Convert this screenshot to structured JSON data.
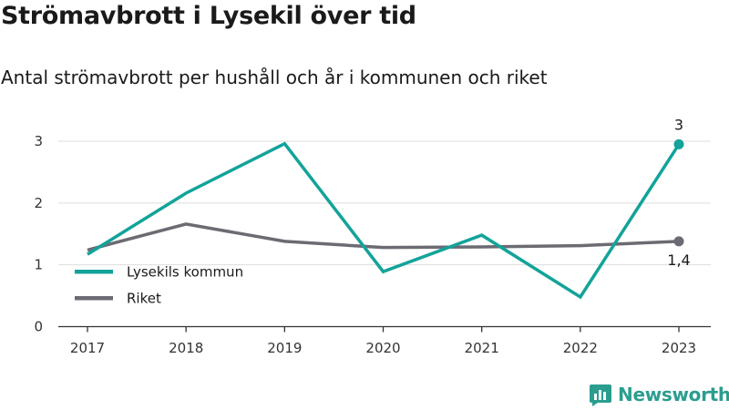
{
  "title": "Strömavbrott i Lysekil över tid",
  "subtitle": "Antal strömavbrott per hushåll och år i kommunen och riket",
  "brand": {
    "name": "Newsworthy",
    "logo_icon": "bar-chart-logo-icon"
  },
  "colors": {
    "lysekil": "#12a39a",
    "riket": "#6b6b73",
    "grid": "#dddddd",
    "axis": "#333333",
    "brand": "#2a9d8f"
  },
  "chart_data": {
    "type": "line",
    "title": "Strömavbrott i Lysekil över tid",
    "subtitle": "Antal strömavbrott per hushåll och år i kommunen och riket",
    "xlabel": "",
    "ylabel": "",
    "x": [
      "2017",
      "2018",
      "2019",
      "2020",
      "2021",
      "2022",
      "2023"
    ],
    "ylim": [
      0,
      3.3
    ],
    "yticks": [
      "0",
      "1",
      "2",
      "3"
    ],
    "grid": true,
    "legend_position": "bottom-left",
    "series": [
      {
        "name": "Lysekils kommun",
        "color": "#12a39a",
        "values": [
          1.17,
          2.16,
          2.96,
          0.89,
          1.48,
          0.48,
          2.95
        ]
      },
      {
        "name": "Riket",
        "color": "#6b6b73",
        "values": [
          1.24,
          1.66,
          1.38,
          1.28,
          1.29,
          1.31,
          1.38
        ]
      }
    ],
    "annotations": [
      {
        "series": "Lysekils kommun",
        "x": "2023",
        "label": "3",
        "position": "above"
      },
      {
        "series": "Riket",
        "x": "2023",
        "label": "1,4",
        "position": "below"
      }
    ]
  }
}
